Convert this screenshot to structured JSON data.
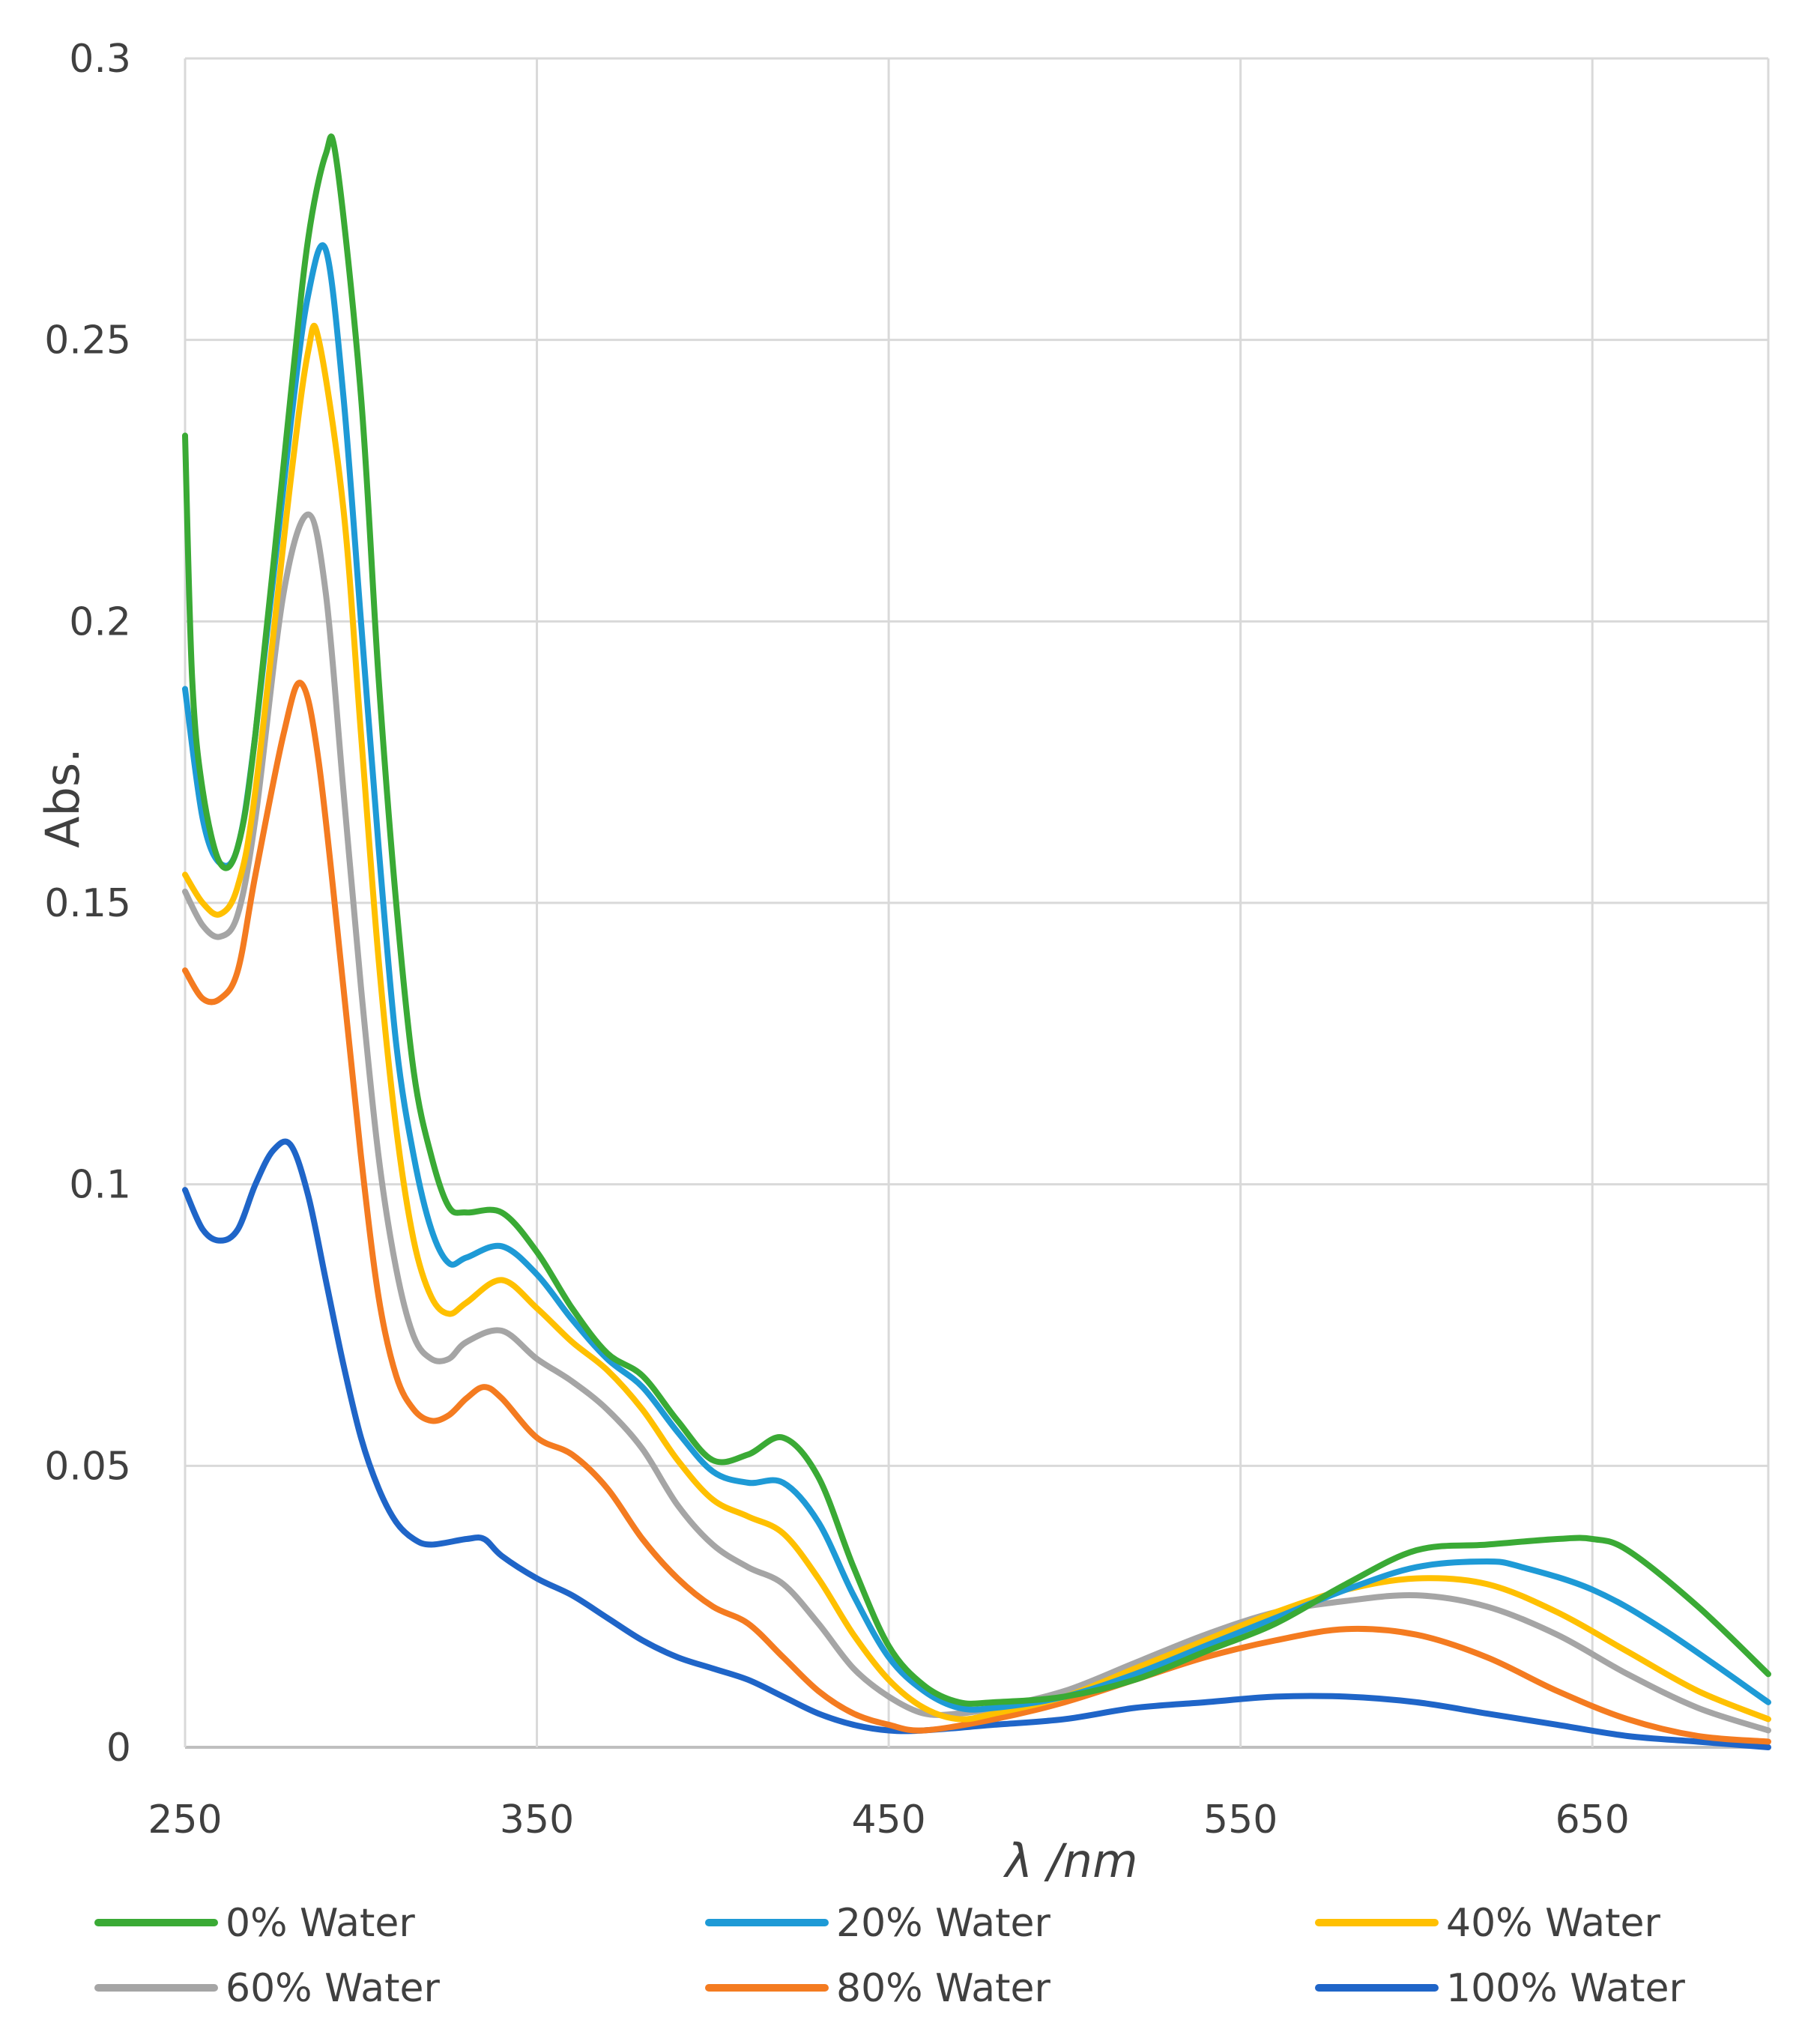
{
  "chart_data": {
    "type": "line",
    "title": "",
    "xlabel": "λ /nm",
    "ylabel": "Abs.",
    "xlim": [
      250,
      700
    ],
    "ylim": [
      0,
      0.3
    ],
    "grid": true,
    "legend_position": "bottom",
    "x_ticks": [
      "250",
      "350",
      "450",
      "550",
      "650"
    ],
    "x_tick_values": [
      250,
      350,
      450,
      550,
      650
    ],
    "y_ticks": [
      "0",
      "0.05",
      "0.1",
      "0.15",
      "0.2",
      "0.25",
      "0.3"
    ],
    "y_tick_values": [
      0,
      0.05,
      0.1,
      0.15,
      0.2,
      0.25,
      0.3
    ],
    "series": [
      {
        "name": "0% Water",
        "color": "#3aaa35",
        "points": [
          [
            250,
            0.233
          ],
          [
            252,
            0.19
          ],
          [
            255,
            0.17
          ],
          [
            260,
            0.157
          ],
          [
            265,
            0.16
          ],
          [
            270,
            0.18
          ],
          [
            280,
            0.24
          ],
          [
            285,
            0.268
          ],
          [
            290,
            0.283
          ],
          [
            293,
            0.282
          ],
          [
            300,
            0.24
          ],
          [
            305,
            0.19
          ],
          [
            310,
            0.15
          ],
          [
            315,
            0.12
          ],
          [
            320,
            0.105
          ],
          [
            325,
            0.096
          ],
          [
            330,
            0.095
          ],
          [
            340,
            0.095
          ],
          [
            350,
            0.088
          ],
          [
            360,
            0.078
          ],
          [
            370,
            0.07
          ],
          [
            380,
            0.066
          ],
          [
            390,
            0.058
          ],
          [
            400,
            0.051
          ],
          [
            410,
            0.052
          ],
          [
            420,
            0.055
          ],
          [
            430,
            0.048
          ],
          [
            440,
            0.032
          ],
          [
            450,
            0.018
          ],
          [
            460,
            0.011
          ],
          [
            470,
            0.008
          ],
          [
            480,
            0.008
          ],
          [
            500,
            0.009
          ],
          [
            520,
            0.012
          ],
          [
            540,
            0.017
          ],
          [
            560,
            0.022
          ],
          [
            580,
            0.029
          ],
          [
            600,
            0.035
          ],
          [
            620,
            0.036
          ],
          [
            640,
            0.037
          ],
          [
            650,
            0.037
          ],
          [
            660,
            0.035
          ],
          [
            680,
            0.025
          ],
          [
            700,
            0.013
          ]
        ]
      },
      {
        "name": "20% Water",
        "color": "#1e9ad6",
        "points": [
          [
            250,
            0.188
          ],
          [
            255,
            0.165
          ],
          [
            260,
            0.157
          ],
          [
            265,
            0.16
          ],
          [
            270,
            0.18
          ],
          [
            280,
            0.235
          ],
          [
            285,
            0.258
          ],
          [
            290,
            0.266
          ],
          [
            295,
            0.24
          ],
          [
            300,
            0.2
          ],
          [
            305,
            0.16
          ],
          [
            310,
            0.125
          ],
          [
            315,
            0.105
          ],
          [
            320,
            0.092
          ],
          [
            325,
            0.086
          ],
          [
            330,
            0.087
          ],
          [
            340,
            0.089
          ],
          [
            350,
            0.084
          ],
          [
            360,
            0.076
          ],
          [
            370,
            0.069
          ],
          [
            380,
            0.064
          ],
          [
            390,
            0.056
          ],
          [
            400,
            0.049
          ],
          [
            410,
            0.047
          ],
          [
            420,
            0.047
          ],
          [
            430,
            0.04
          ],
          [
            440,
            0.027
          ],
          [
            450,
            0.016
          ],
          [
            460,
            0.01
          ],
          [
            470,
            0.007
          ],
          [
            480,
            0.007
          ],
          [
            500,
            0.009
          ],
          [
            520,
            0.013
          ],
          [
            540,
            0.018
          ],
          [
            560,
            0.023
          ],
          [
            580,
            0.028
          ],
          [
            600,
            0.032
          ],
          [
            620,
            0.033
          ],
          [
            630,
            0.032
          ],
          [
            650,
            0.028
          ],
          [
            670,
            0.021
          ],
          [
            700,
            0.008
          ]
        ]
      },
      {
        "name": "40% Water",
        "color": "#ffc000",
        "points": [
          [
            250,
            0.155
          ],
          [
            255,
            0.15
          ],
          [
            260,
            0.148
          ],
          [
            265,
            0.153
          ],
          [
            270,
            0.17
          ],
          [
            280,
            0.225
          ],
          [
            285,
            0.248
          ],
          [
            288,
            0.25
          ],
          [
            295,
            0.22
          ],
          [
            300,
            0.18
          ],
          [
            305,
            0.14
          ],
          [
            310,
            0.11
          ],
          [
            315,
            0.09
          ],
          [
            320,
            0.08
          ],
          [
            325,
            0.077
          ],
          [
            330,
            0.079
          ],
          [
            340,
            0.083
          ],
          [
            350,
            0.078
          ],
          [
            360,
            0.072
          ],
          [
            370,
            0.067
          ],
          [
            380,
            0.06
          ],
          [
            390,
            0.051
          ],
          [
            400,
            0.044
          ],
          [
            410,
            0.041
          ],
          [
            420,
            0.038
          ],
          [
            430,
            0.03
          ],
          [
            440,
            0.02
          ],
          [
            450,
            0.012
          ],
          [
            460,
            0.007
          ],
          [
            470,
            0.005
          ],
          [
            480,
            0.006
          ],
          [
            500,
            0.009
          ],
          [
            520,
            0.014
          ],
          [
            540,
            0.019
          ],
          [
            560,
            0.024
          ],
          [
            580,
            0.028
          ],
          [
            600,
            0.03
          ],
          [
            620,
            0.029
          ],
          [
            640,
            0.024
          ],
          [
            660,
            0.017
          ],
          [
            680,
            0.01
          ],
          [
            700,
            0.005
          ]
        ]
      },
      {
        "name": "60% Water",
        "color": "#a5a5a5",
        "points": [
          [
            250,
            0.152
          ],
          [
            255,
            0.146
          ],
          [
            260,
            0.144
          ],
          [
            265,
            0.148
          ],
          [
            270,
            0.165
          ],
          [
            278,
            0.205
          ],
          [
            285,
            0.219
          ],
          [
            290,
            0.205
          ],
          [
            295,
            0.17
          ],
          [
            300,
            0.135
          ],
          [
            305,
            0.105
          ],
          [
            310,
            0.085
          ],
          [
            315,
            0.073
          ],
          [
            320,
            0.069
          ],
          [
            325,
            0.069
          ],
          [
            330,
            0.072
          ],
          [
            340,
            0.074
          ],
          [
            350,
            0.069
          ],
          [
            360,
            0.065
          ],
          [
            370,
            0.06
          ],
          [
            380,
            0.053
          ],
          [
            390,
            0.043
          ],
          [
            400,
            0.036
          ],
          [
            410,
            0.032
          ],
          [
            420,
            0.029
          ],
          [
            430,
            0.022
          ],
          [
            440,
            0.014
          ],
          [
            450,
            0.009
          ],
          [
            460,
            0.006
          ],
          [
            470,
            0.006
          ],
          [
            480,
            0.007
          ],
          [
            500,
            0.01
          ],
          [
            520,
            0.015
          ],
          [
            540,
            0.02
          ],
          [
            560,
            0.024
          ],
          [
            580,
            0.026
          ],
          [
            600,
            0.027
          ],
          [
            620,
            0.025
          ],
          [
            640,
            0.02
          ],
          [
            660,
            0.013
          ],
          [
            680,
            0.007
          ],
          [
            700,
            0.003
          ]
        ]
      },
      {
        "name": "80% Water",
        "color": "#f47b20",
        "points": [
          [
            250,
            0.138
          ],
          [
            255,
            0.133
          ],
          [
            260,
            0.133
          ],
          [
            265,
            0.138
          ],
          [
            270,
            0.155
          ],
          [
            278,
            0.18
          ],
          [
            283,
            0.189
          ],
          [
            288,
            0.175
          ],
          [
            295,
            0.135
          ],
          [
            300,
            0.105
          ],
          [
            305,
            0.08
          ],
          [
            310,
            0.066
          ],
          [
            315,
            0.06
          ],
          [
            320,
            0.058
          ],
          [
            325,
            0.059
          ],
          [
            330,
            0.062
          ],
          [
            335,
            0.064
          ],
          [
            340,
            0.062
          ],
          [
            350,
            0.055
          ],
          [
            360,
            0.052
          ],
          [
            370,
            0.046
          ],
          [
            380,
            0.037
          ],
          [
            390,
            0.03
          ],
          [
            400,
            0.025
          ],
          [
            410,
            0.022
          ],
          [
            420,
            0.016
          ],
          [
            430,
            0.01
          ],
          [
            440,
            0.006
          ],
          [
            450,
            0.004
          ],
          [
            460,
            0.003
          ],
          [
            480,
            0.005
          ],
          [
            500,
            0.008
          ],
          [
            520,
            0.012
          ],
          [
            540,
            0.016
          ],
          [
            560,
            0.019
          ],
          [
            580,
            0.021
          ],
          [
            600,
            0.02
          ],
          [
            620,
            0.016
          ],
          [
            640,
            0.01
          ],
          [
            660,
            0.005
          ],
          [
            680,
            0.002
          ],
          [
            700,
            0.001
          ]
        ]
      },
      {
        "name": "100% Water",
        "color": "#1f65c8",
        "points": [
          [
            250,
            0.099
          ],
          [
            255,
            0.092
          ],
          [
            260,
            0.09
          ],
          [
            265,
            0.092
          ],
          [
            270,
            0.1
          ],
          [
            275,
            0.106
          ],
          [
            280,
            0.107
          ],
          [
            285,
            0.098
          ],
          [
            290,
            0.083
          ],
          [
            295,
            0.068
          ],
          [
            300,
            0.055
          ],
          [
            305,
            0.046
          ],
          [
            310,
            0.04
          ],
          [
            315,
            0.037
          ],
          [
            320,
            0.036
          ],
          [
            330,
            0.037
          ],
          [
            335,
            0.037
          ],
          [
            340,
            0.034
          ],
          [
            350,
            0.03
          ],
          [
            360,
            0.027
          ],
          [
            370,
            0.023
          ],
          [
            380,
            0.019
          ],
          [
            390,
            0.016
          ],
          [
            400,
            0.014
          ],
          [
            410,
            0.012
          ],
          [
            420,
            0.009
          ],
          [
            430,
            0.006
          ],
          [
            440,
            0.004
          ],
          [
            450,
            0.003
          ],
          [
            460,
            0.003
          ],
          [
            480,
            0.004
          ],
          [
            500,
            0.005
          ],
          [
            520,
            0.007
          ],
          [
            540,
            0.008
          ],
          [
            560,
            0.009
          ],
          [
            580,
            0.009
          ],
          [
            600,
            0.008
          ],
          [
            620,
            0.006
          ],
          [
            640,
            0.004
          ],
          [
            660,
            0.002
          ],
          [
            680,
            0.001
          ],
          [
            700,
            0.0
          ]
        ]
      }
    ]
  }
}
